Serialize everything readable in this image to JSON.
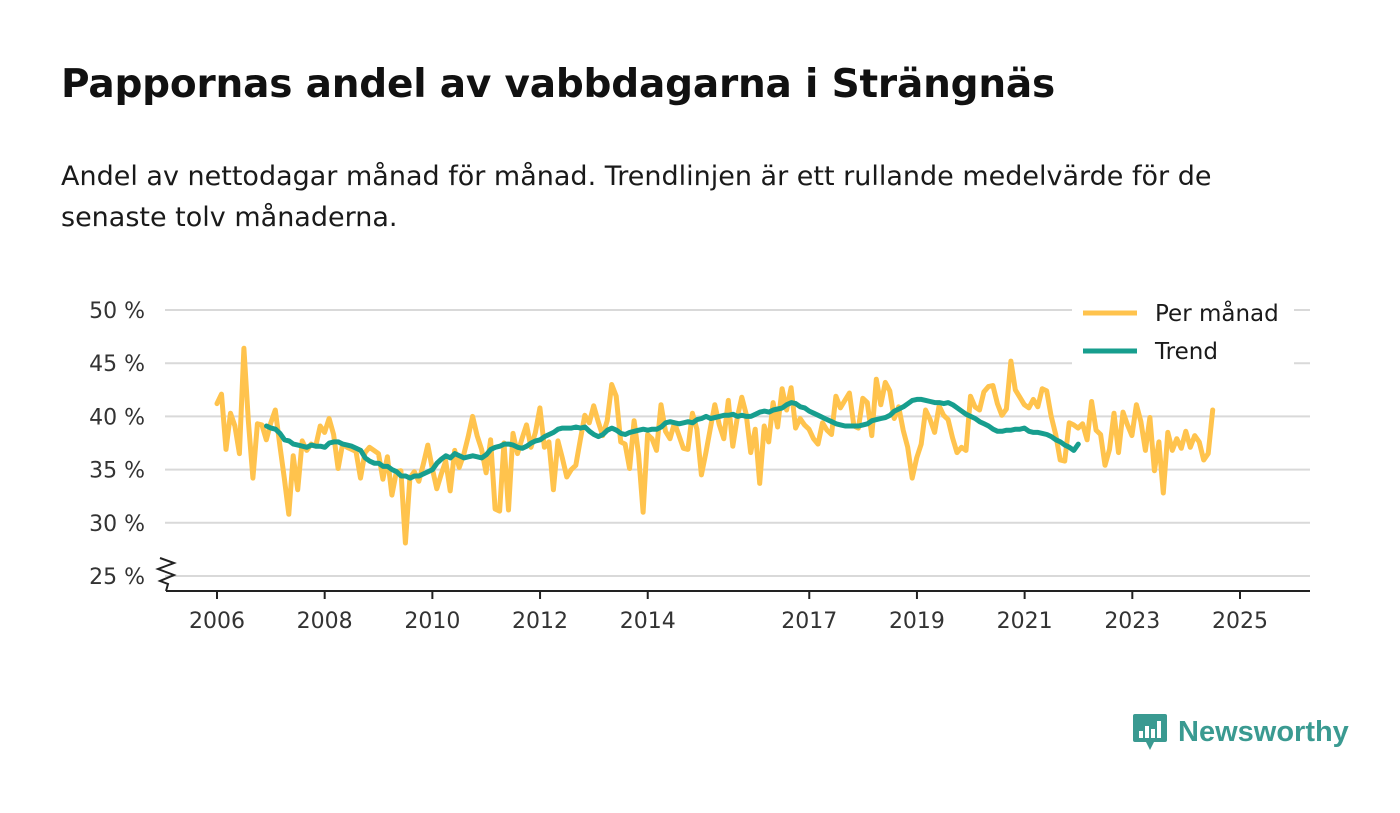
{
  "title": "Pappornas andel av vabbdagarna i Strängnäs",
  "subtitle": "Andel av nettodagar månad för månad. Trendlinjen är ett rullande medelvärde för de senaste tolv månaderna.",
  "brand": {
    "name": "Newsworthy",
    "color": "#3a9a91",
    "icon": "newsworthy-logo-icon"
  },
  "chart_data": {
    "type": "line",
    "title": "Pappornas andel av vabbdagarna i Strängnäs",
    "xlabel": "",
    "ylabel": "",
    "x_range": [
      2005.0,
      2026.3
    ],
    "ylim": [
      25,
      50
    ],
    "y_ticks": [
      25,
      30,
      35,
      40,
      45,
      50
    ],
    "y_tick_labels": [
      "25 %",
      "30 %",
      "35 %",
      "40 %",
      "45 %",
      "50 %"
    ],
    "x_ticks": [
      2006,
      2008,
      2010,
      2012,
      2014,
      2017,
      2019,
      2021,
      2023,
      2025
    ],
    "x_tick_labels": [
      "2006",
      "2008",
      "2010",
      "2012",
      "2014",
      "2017",
      "2019",
      "2021",
      "2023",
      "2025"
    ],
    "grid": true,
    "axis_break": true,
    "legend": {
      "position": "top-right",
      "entries": [
        "Per månad",
        "Trend"
      ]
    },
    "series": [
      {
        "name": "Per månad",
        "color": "#ffc34d",
        "start_year": 2006.0,
        "step": 0.0833,
        "values": [
          41.2,
          42.1,
          36.9,
          40.3,
          39.1,
          36.5,
          46.4,
          39.5,
          34.2,
          39.3,
          39.2,
          37.8,
          39.4,
          40.6,
          37.3,
          34.2,
          30.8,
          36.3,
          33.1,
          37.7,
          36.8,
          37.4,
          37.2,
          39.1,
          38.5,
          39.8,
          38.3,
          35.1,
          37.4,
          37.1,
          36.9,
          36.7,
          34.2,
          36.6,
          37.1,
          36.8,
          36.5,
          34.1,
          36.2,
          32.6,
          34.8,
          34.9,
          28.1,
          34.2,
          34.8,
          33.9,
          35.5,
          37.3,
          35.1,
          33.2,
          34.6,
          35.8,
          33.0,
          36.8,
          35.2,
          36.4,
          38.1,
          40.0,
          38.2,
          36.9,
          34.7,
          37.8,
          31.3,
          31.1,
          37.5,
          31.2,
          38.4,
          36.5,
          37.9,
          39.2,
          37.1,
          38.5,
          40.8,
          37.1,
          37.6,
          33.1,
          37.7,
          36.1,
          34.3,
          35.0,
          35.4,
          37.8,
          40.1,
          39.4,
          41.0,
          39.5,
          38.2,
          39.6,
          43.0,
          41.9,
          37.6,
          37.4,
          35.1,
          39.6,
          36.4,
          31.0,
          38.3,
          37.9,
          36.8,
          41.1,
          38.6,
          37.9,
          39.4,
          38.2,
          37.0,
          36.9,
          40.3,
          38.8,
          34.5,
          36.6,
          38.9,
          41.1,
          39.2,
          37.9,
          41.5,
          37.2,
          39.9,
          41.8,
          40.2,
          36.6,
          38.8,
          33.7,
          39.1,
          37.6,
          41.3,
          39.0,
          42.6,
          40.6,
          42.7,
          38.9,
          39.8,
          39.2,
          38.8,
          37.9,
          37.4,
          39.4,
          38.7,
          38.3,
          41.9,
          40.8,
          41.5,
          42.2,
          39.1,
          38.9,
          41.7,
          41.3,
          38.2,
          43.5,
          41.1,
          43.2,
          42.4,
          39.8,
          40.9,
          38.7,
          37.1,
          34.2,
          36.1,
          37.4,
          40.6,
          39.7,
          38.5,
          41.0,
          40.1,
          39.7,
          38.0,
          36.6,
          37.1,
          36.8,
          41.9,
          40.9,
          40.6,
          42.3,
          42.8,
          42.9,
          41.2,
          40.1,
          40.7,
          45.2,
          42.5,
          41.8,
          41.1,
          40.8,
          41.6,
          40.9,
          42.6,
          42.4,
          40.0,
          38.3,
          35.9,
          35.8,
          39.4,
          39.2,
          38.9,
          39.3,
          37.8,
          41.4,
          38.7,
          38.3,
          35.4,
          36.9,
          40.3,
          36.6,
          40.4,
          39.2,
          38.2,
          41.1,
          39.5,
          36.8,
          39.9,
          34.9,
          37.6,
          32.8,
          38.5,
          36.8,
          37.9,
          37.0,
          38.6,
          37.1,
          38.2,
          37.6,
          35.9,
          36.5,
          40.6
        ]
      },
      {
        "name": "Trend",
        "color": "#179e8e",
        "start_year": 2006.92,
        "step": 0.0833,
        "values": [
          39.1,
          38.9,
          38.8,
          38.4,
          37.8,
          37.7,
          37.4,
          37.3,
          37.2,
          37.1,
          37.3,
          37.2,
          37.2,
          37.1,
          37.5,
          37.6,
          37.6,
          37.4,
          37.3,
          37.2,
          37.0,
          36.8,
          36.1,
          35.8,
          35.6,
          35.6,
          35.3,
          35.3,
          35.0,
          34.8,
          34.4,
          34.4,
          34.2,
          34.4,
          34.4,
          34.6,
          34.8,
          35.0,
          35.6,
          36.0,
          36.3,
          36.1,
          36.5,
          36.3,
          36.1,
          36.2,
          36.3,
          36.2,
          36.1,
          36.4,
          36.9,
          37.1,
          37.2,
          37.4,
          37.4,
          37.3,
          37.1,
          37.0,
          37.2,
          37.5,
          37.7,
          37.8,
          38.1,
          38.3,
          38.5,
          38.8,
          38.9,
          38.9,
          38.9,
          39.0,
          38.9,
          39.0,
          38.6,
          38.3,
          38.1,
          38.3,
          38.7,
          38.9,
          38.7,
          38.4,
          38.3,
          38.5,
          38.6,
          38.7,
          38.8,
          38.7,
          38.8,
          38.8,
          39.0,
          39.4,
          39.5,
          39.4,
          39.3,
          39.4,
          39.5,
          39.4,
          39.7,
          39.8,
          40.0,
          39.8,
          39.9,
          40.0,
          40.1,
          40.1,
          40.2,
          40.0,
          40.1,
          40.0,
          40.0,
          40.2,
          40.4,
          40.5,
          40.4,
          40.6,
          40.7,
          40.8,
          41.1,
          41.3,
          41.2,
          40.9,
          40.8,
          40.5,
          40.3,
          40.1,
          39.9,
          39.7,
          39.5,
          39.3,
          39.2,
          39.1,
          39.1,
          39.1,
          39.1,
          39.2,
          39.3,
          39.6,
          39.7,
          39.8,
          39.9,
          40.1,
          40.5,
          40.7,
          40.9,
          41.2,
          41.5,
          41.6,
          41.6,
          41.5,
          41.4,
          41.3,
          41.3,
          41.2,
          41.3,
          41.1,
          40.8,
          40.5,
          40.2,
          40.0,
          39.8,
          39.5,
          39.3,
          39.1,
          38.8,
          38.6,
          38.6,
          38.7,
          38.7,
          38.8,
          38.8,
          38.9,
          38.6,
          38.5,
          38.5,
          38.4,
          38.3,
          38.1,
          37.8,
          37.6,
          37.3,
          37.1,
          36.8,
          37.4
        ]
      }
    ]
  }
}
